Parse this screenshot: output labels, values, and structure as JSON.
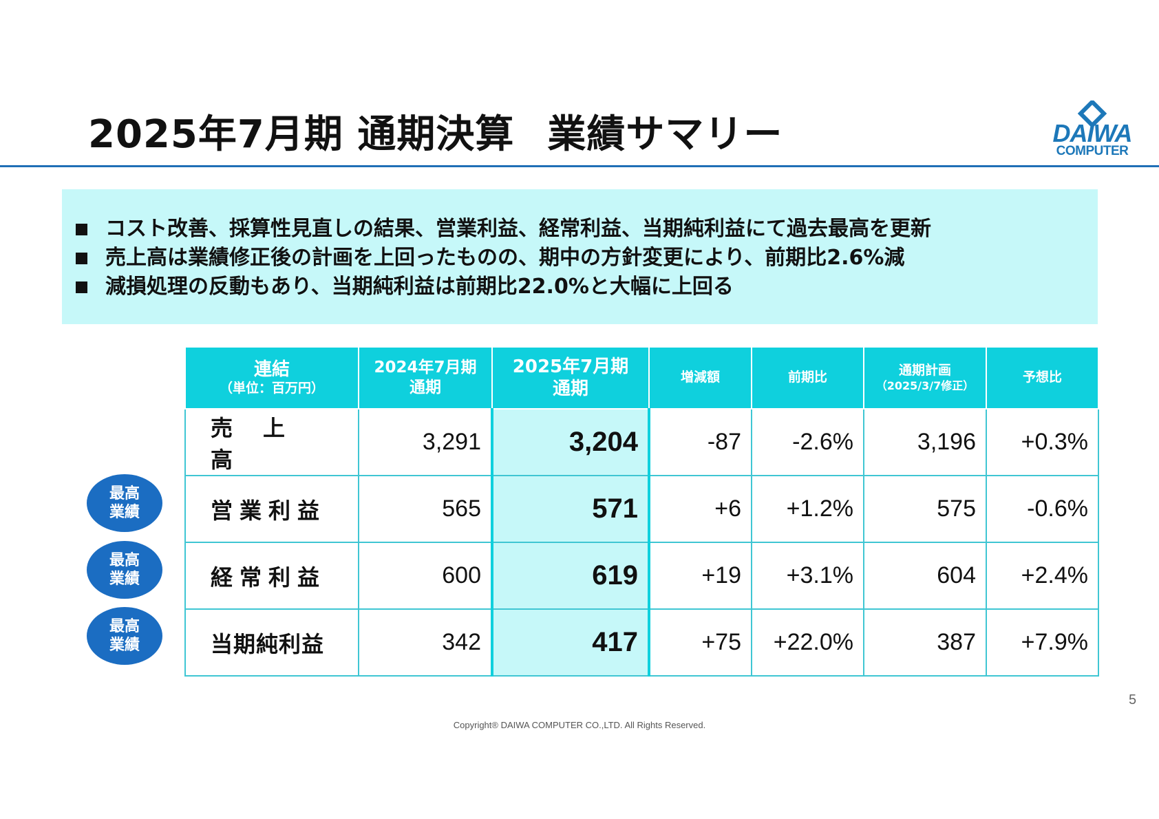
{
  "header": {
    "title_part1": "2025年7月期 通期決算",
    "title_part2": "業績サマリー"
  },
  "logo": {
    "word": "DAIWA",
    "sub": "COMPUTER"
  },
  "summary": {
    "bullets": [
      "コスト改善、採算性見直しの結果、営業利益、経常利益、当期純利益にて過去最高を更新",
      "売上高は業績修正後の計画を上回ったものの、期中の方針変更により、前期比2.6%減",
      "減損処理の反動もあり、当期純利益は前期比22.0%と大幅に上回る"
    ]
  },
  "table": {
    "header": {
      "col0_line1": "連結",
      "col0_line2": "（単位：百万円）",
      "col1_line1": "2024年7月期",
      "col1_line2": "通期",
      "col2_line1": "2025年7月期",
      "col2_line2": "通期",
      "col3": "増減額",
      "col4": "前期比",
      "col5_line1": "通期計画",
      "col5_line2": "（2025/3/7修正）",
      "col6": "予想比"
    },
    "rows": [
      {
        "label": "売上高",
        "prev": "3,291",
        "curr": "3,204",
        "diff": "-87",
        "ratio": "-2.6%",
        "plan": "3,196",
        "vs_plan": "+0.3%"
      },
      {
        "label": "営業利益",
        "prev": "565",
        "curr": "571",
        "diff": "+6",
        "ratio": "+1.2%",
        "plan": "575",
        "vs_plan": "-0.6%"
      },
      {
        "label": "経常利益",
        "prev": "600",
        "curr": "619",
        "diff": "+19",
        "ratio": "+3.1%",
        "plan": "604",
        "vs_plan": "+2.4%"
      },
      {
        "label": "当期純利益",
        "prev": "342",
        "curr": "417",
        "diff": "+75",
        "ratio": "+22.0%",
        "plan": "387",
        "vs_plan": "+7.9%"
      }
    ]
  },
  "badges": {
    "line1": "最高",
    "line2": "業績"
  },
  "footer": {
    "page_number": "5",
    "copyright": "Copyright® DAIWA COMPUTER CO.,LTD. All Rights Reserved."
  },
  "colors": {
    "accent_blue": "#1f6fb6",
    "header_cyan": "#0fd0dd",
    "highlight_bg": "#c6f8f9",
    "badge_blue": "#1b6dc2"
  }
}
